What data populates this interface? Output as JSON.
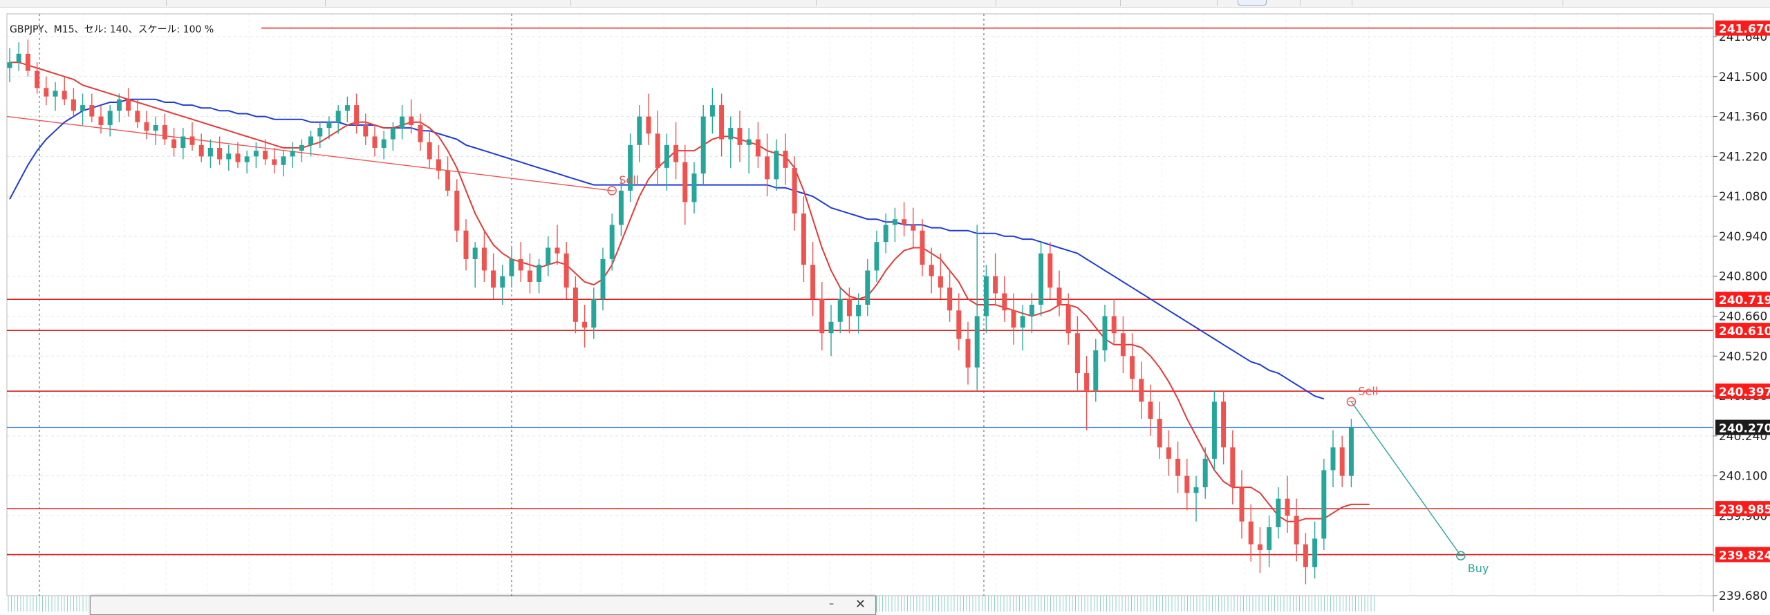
{
  "chart_info": "GBPJPY、M15、セル: 140、スケール: 100 %",
  "chart_data": {
    "type": "candlestick",
    "symbol": "GBPJPY",
    "timeframe": "M15",
    "ylim": [
      239.68,
      241.72
    ],
    "y_ticks": [
      "241.640",
      "241.500",
      "241.360",
      "241.220",
      "241.080",
      "240.940",
      "240.800",
      "240.660",
      "240.520",
      "240.380",
      "240.240",
      "240.100",
      "239.960",
      "239.820",
      "239.680"
    ],
    "current_price": "240.270",
    "horizontal_levels": [
      "241.670",
      "240.719",
      "240.610",
      "240.397",
      "239.985",
      "239.824"
    ],
    "trade_markers": [
      {
        "label": "Sell",
        "x": 66,
        "price": 241.1
      },
      {
        "label": "Sell",
        "x": 147,
        "price": 240.36
      },
      {
        "label": "Buy",
        "x": 159,
        "price": 239.82
      }
    ],
    "ohlc": [
      [
        241.53,
        241.6,
        241.48,
        241.55
      ],
      [
        241.55,
        241.62,
        241.52,
        241.58
      ],
      [
        241.58,
        241.63,
        241.5,
        241.52
      ],
      [
        241.52,
        241.55,
        241.44,
        241.46
      ],
      [
        241.46,
        241.5,
        241.4,
        241.43
      ],
      [
        241.43,
        241.48,
        241.38,
        241.45
      ],
      [
        241.45,
        241.5,
        241.4,
        241.42
      ],
      [
        241.42,
        241.46,
        241.36,
        241.38
      ],
      [
        241.38,
        241.44,
        241.33,
        241.4
      ],
      [
        241.4,
        241.44,
        241.34,
        241.36
      ],
      [
        241.36,
        241.4,
        241.3,
        241.33
      ],
      [
        241.33,
        241.4,
        241.29,
        241.38
      ],
      [
        241.38,
        241.44,
        241.34,
        241.42
      ],
      [
        241.42,
        241.46,
        241.36,
        241.38
      ],
      [
        241.38,
        241.42,
        241.32,
        241.34
      ],
      [
        241.34,
        241.38,
        241.28,
        241.31
      ],
      [
        241.31,
        241.36,
        241.26,
        241.33
      ],
      [
        241.33,
        241.37,
        241.26,
        241.28
      ],
      [
        241.28,
        241.32,
        241.22,
        241.25
      ],
      [
        241.25,
        241.32,
        241.21,
        241.29
      ],
      [
        241.29,
        241.34,
        241.24,
        241.26
      ],
      [
        241.26,
        241.3,
        241.2,
        241.22
      ],
      [
        241.22,
        241.28,
        241.18,
        241.25
      ],
      [
        241.25,
        241.29,
        241.19,
        241.21
      ],
      [
        241.21,
        241.26,
        241.17,
        241.23
      ],
      [
        241.23,
        241.27,
        241.18,
        241.2
      ],
      [
        241.2,
        241.24,
        241.16,
        241.22
      ],
      [
        241.22,
        241.27,
        241.18,
        241.24
      ],
      [
        241.24,
        241.28,
        241.19,
        241.21
      ],
      [
        241.21,
        241.25,
        241.16,
        241.19
      ],
      [
        241.19,
        241.24,
        241.15,
        241.22
      ],
      [
        241.22,
        241.27,
        241.18,
        241.24
      ],
      [
        241.24,
        241.28,
        241.2,
        241.26
      ],
      [
        241.26,
        241.31,
        241.22,
        241.29
      ],
      [
        241.29,
        241.34,
        241.25,
        241.32
      ],
      [
        241.32,
        241.36,
        241.28,
        241.34
      ],
      [
        241.34,
        241.4,
        241.3,
        241.38
      ],
      [
        241.38,
        241.43,
        241.34,
        241.4
      ],
      [
        241.4,
        241.44,
        241.3,
        241.33
      ],
      [
        241.33,
        241.37,
        241.26,
        241.29
      ],
      [
        241.29,
        241.33,
        241.22,
        241.25
      ],
      [
        241.25,
        241.31,
        241.21,
        241.28
      ],
      [
        241.28,
        241.34,
        241.24,
        241.32
      ],
      [
        241.32,
        241.4,
        241.28,
        241.36
      ],
      [
        241.36,
        241.42,
        241.3,
        241.33
      ],
      [
        241.33,
        241.37,
        241.24,
        241.27
      ],
      [
        241.27,
        241.31,
        241.18,
        241.21
      ],
      [
        241.21,
        241.26,
        241.14,
        241.17
      ],
      [
        241.17,
        241.22,
        241.08,
        241.1
      ],
      [
        241.1,
        241.14,
        240.92,
        240.96
      ],
      [
        240.96,
        241.0,
        240.82,
        240.86
      ],
      [
        240.86,
        240.92,
        240.76,
        240.9
      ],
      [
        240.9,
        240.96,
        240.78,
        240.82
      ],
      [
        240.82,
        240.88,
        240.72,
        240.76
      ],
      [
        240.76,
        240.84,
        240.7,
        240.8
      ],
      [
        240.8,
        240.9,
        240.76,
        240.86
      ],
      [
        240.86,
        240.92,
        240.78,
        240.82
      ],
      [
        240.82,
        240.88,
        240.74,
        240.78
      ],
      [
        240.78,
        240.86,
        240.74,
        240.84
      ],
      [
        240.84,
        240.94,
        240.8,
        240.9
      ],
      [
        240.9,
        240.98,
        240.84,
        240.88
      ],
      [
        240.88,
        240.92,
        240.72,
        240.76
      ],
      [
        240.76,
        240.8,
        240.6,
        240.64
      ],
      [
        240.64,
        240.7,
        240.55,
        240.62
      ],
      [
        240.62,
        240.76,
        240.58,
        240.72
      ],
      [
        240.72,
        240.9,
        240.68,
        240.86
      ],
      [
        240.86,
        241.02,
        240.82,
        240.98
      ],
      [
        240.98,
        241.14,
        240.94,
        241.1
      ],
      [
        241.1,
        241.3,
        241.06,
        241.26
      ],
      [
        241.26,
        241.4,
        241.2,
        241.36
      ],
      [
        241.36,
        241.44,
        241.26,
        241.3
      ],
      [
        241.3,
        241.38,
        241.12,
        241.18
      ],
      [
        241.18,
        241.3,
        241.1,
        241.26
      ],
      [
        241.26,
        241.34,
        241.14,
        241.2
      ],
      [
        241.2,
        241.26,
        240.98,
        241.06
      ],
      [
        241.06,
        241.2,
        241.02,
        241.16
      ],
      [
        241.16,
        241.4,
        241.12,
        241.36
      ],
      [
        241.36,
        241.46,
        241.3,
        241.4
      ],
      [
        241.4,
        241.44,
        241.22,
        241.28
      ],
      [
        241.28,
        241.36,
        241.18,
        241.32
      ],
      [
        241.32,
        241.38,
        241.2,
        241.26
      ],
      [
        241.26,
        241.32,
        241.16,
        241.28
      ],
      [
        241.28,
        241.34,
        241.18,
        241.22
      ],
      [
        241.22,
        241.3,
        241.08,
        241.14
      ],
      [
        241.14,
        241.28,
        241.1,
        241.24
      ],
      [
        241.24,
        241.3,
        241.12,
        241.18
      ],
      [
        241.18,
        241.22,
        240.96,
        241.02
      ],
      [
        241.02,
        241.08,
        240.78,
        240.84
      ],
      [
        240.84,
        240.92,
        240.66,
        240.72
      ],
      [
        240.72,
        240.78,
        240.54,
        240.6
      ],
      [
        240.6,
        240.7,
        240.52,
        240.64
      ],
      [
        240.64,
        240.76,
        240.6,
        240.72
      ],
      [
        240.72,
        240.76,
        240.6,
        240.66
      ],
      [
        240.66,
        240.74,
        240.6,
        240.7
      ],
      [
        240.7,
        240.86,
        240.66,
        240.82
      ],
      [
        240.82,
        240.96,
        240.78,
        240.92
      ],
      [
        240.92,
        241.02,
        240.88,
        240.98
      ],
      [
        240.98,
        241.04,
        240.92,
        241.0
      ],
      [
        241.0,
        241.06,
        240.94,
        240.98
      ],
      [
        240.98,
        241.04,
        240.9,
        240.96
      ],
      [
        240.96,
        241.0,
        240.8,
        240.84
      ],
      [
        240.84,
        240.9,
        240.74,
        240.8
      ],
      [
        240.8,
        240.88,
        240.72,
        240.76
      ],
      [
        240.76,
        240.82,
        240.64,
        240.68
      ],
      [
        240.68,
        240.74,
        240.54,
        240.58
      ],
      [
        240.58,
        240.64,
        240.42,
        240.48
      ],
      [
        240.48,
        240.98,
        240.4,
        240.66
      ],
      [
        240.66,
        240.84,
        240.6,
        240.8
      ],
      [
        240.8,
        240.88,
        240.7,
        240.74
      ],
      [
        240.74,
        240.8,
        240.64,
        240.68
      ],
      [
        240.68,
        240.74,
        240.56,
        240.62
      ],
      [
        240.62,
        240.7,
        240.54,
        240.66
      ],
      [
        240.66,
        240.74,
        240.6,
        240.7
      ],
      [
        240.7,
        240.92,
        240.66,
        240.88
      ],
      [
        240.88,
        240.92,
        240.72,
        240.76
      ],
      [
        240.76,
        240.82,
        240.66,
        240.7
      ],
      [
        240.7,
        240.74,
        240.56,
        240.6
      ],
      [
        240.6,
        240.66,
        240.4,
        240.46
      ],
      [
        240.46,
        240.52,
        240.26,
        240.4
      ],
      [
        240.4,
        240.58,
        240.36,
        240.54
      ],
      [
        240.54,
        240.7,
        240.5,
        240.66
      ],
      [
        240.66,
        240.72,
        240.56,
        240.6
      ],
      [
        240.6,
        240.66,
        240.46,
        240.52
      ],
      [
        240.52,
        240.6,
        240.4,
        240.44
      ],
      [
        240.44,
        240.5,
        240.3,
        240.36
      ],
      [
        240.36,
        240.42,
        240.24,
        240.3
      ],
      [
        240.3,
        240.36,
        240.16,
        240.2
      ],
      [
        240.2,
        240.26,
        240.1,
        240.16
      ],
      [
        240.16,
        240.22,
        240.04,
        240.1
      ],
      [
        240.1,
        240.16,
        239.98,
        240.04
      ],
      [
        240.04,
        240.1,
        239.94,
        240.06
      ],
      [
        240.06,
        240.2,
        240.02,
        240.16
      ],
      [
        240.16,
        240.4,
        240.12,
        240.36
      ],
      [
        240.36,
        240.4,
        240.14,
        240.2
      ],
      [
        240.2,
        240.26,
        240.0,
        240.06
      ],
      [
        240.06,
        240.12,
        239.88,
        239.94
      ],
      [
        239.94,
        240.0,
        239.8,
        239.86
      ],
      [
        239.86,
        239.92,
        239.76,
        239.84
      ],
      [
        239.84,
        239.96,
        239.78,
        239.92
      ],
      [
        239.92,
        240.06,
        239.88,
        240.02
      ],
      [
        240.02,
        240.1,
        239.9,
        239.96
      ],
      [
        239.96,
        240.02,
        239.8,
        239.86
      ],
      [
        239.86,
        239.9,
        239.72,
        239.78
      ],
      [
        239.78,
        239.94,
        239.74,
        239.88
      ],
      [
        239.88,
        240.16,
        239.84,
        240.12
      ],
      [
        240.12,
        240.26,
        240.06,
        240.2
      ],
      [
        240.2,
        240.24,
        240.06,
        240.1
      ],
      [
        240.1,
        240.3,
        240.06,
        240.27
      ]
    ],
    "ma_fast": [
      241.55,
      241.55,
      241.54,
      241.53,
      241.52,
      241.51,
      241.5,
      241.49,
      241.47,
      241.46,
      241.45,
      241.44,
      241.43,
      241.42,
      241.41,
      241.4,
      241.39,
      241.38,
      241.37,
      241.36,
      241.35,
      241.34,
      241.33,
      241.32,
      241.31,
      241.3,
      241.29,
      241.28,
      241.27,
      241.26,
      241.25,
      241.25,
      241.25,
      241.26,
      241.27,
      241.29,
      241.31,
      241.33,
      241.34,
      241.34,
      241.33,
      241.32,
      241.32,
      241.33,
      241.34,
      241.34,
      241.32,
      241.29,
      241.24,
      241.18,
      241.1,
      241.02,
      240.96,
      240.91,
      240.88,
      240.86,
      240.85,
      240.84,
      240.83,
      240.84,
      240.85,
      240.84,
      240.81,
      240.78,
      240.77,
      240.79,
      240.84,
      240.92,
      241.0,
      241.08,
      241.14,
      241.18,
      241.21,
      241.24,
      241.24,
      241.24,
      241.26,
      241.28,
      241.29,
      241.29,
      241.28,
      241.27,
      241.26,
      241.24,
      241.23,
      241.22,
      241.18,
      241.1,
      241.0,
      240.9,
      240.82,
      240.76,
      240.73,
      240.72,
      240.73,
      240.77,
      240.82,
      240.86,
      240.89,
      240.9,
      240.9,
      240.88,
      240.86,
      240.82,
      240.78,
      240.72,
      240.7,
      240.7,
      240.7,
      240.69,
      240.68,
      240.67,
      240.66,
      240.67,
      240.68,
      240.7,
      240.7,
      240.69,
      240.66,
      240.62,
      240.58,
      240.56,
      240.56,
      240.56,
      240.55,
      240.52,
      240.48,
      240.43,
      240.37,
      240.3,
      240.24,
      240.18,
      240.12,
      240.08,
      240.06,
      240.06,
      240.06,
      240.04,
      240.0,
      239.96,
      239.94,
      239.94,
      239.95,
      239.95,
      239.95,
      239.97,
      239.99,
      240.0,
      240.0,
      240.0
    ],
    "ma_slow": [
      241.07,
      241.13,
      241.19,
      241.24,
      241.28,
      241.31,
      241.34,
      241.36,
      241.38,
      241.39,
      241.4,
      241.41,
      241.41,
      241.42,
      241.42,
      241.42,
      241.42,
      241.41,
      241.41,
      241.4,
      241.4,
      241.39,
      241.39,
      241.38,
      241.38,
      241.37,
      241.37,
      241.36,
      241.36,
      241.35,
      241.35,
      241.35,
      241.35,
      241.34,
      241.34,
      241.34,
      241.34,
      241.33,
      241.33,
      241.33,
      241.33,
      241.32,
      241.32,
      241.32,
      241.32,
      241.31,
      241.31,
      241.3,
      241.29,
      241.28,
      241.26,
      241.25,
      241.24,
      241.23,
      241.22,
      241.21,
      241.2,
      241.19,
      241.18,
      241.17,
      241.16,
      241.15,
      241.14,
      241.13,
      241.12,
      241.12,
      241.12,
      241.12,
      241.12,
      241.12,
      241.12,
      241.12,
      241.12,
      241.12,
      241.12,
      241.12,
      241.12,
      241.12,
      241.12,
      241.12,
      241.12,
      241.12,
      241.12,
      241.12,
      241.11,
      241.11,
      241.1,
      241.09,
      241.08,
      241.06,
      241.04,
      241.03,
      241.02,
      241.01,
      241.0,
      241.0,
      240.99,
      240.99,
      240.98,
      240.98,
      240.98,
      240.97,
      240.97,
      240.96,
      240.96,
      240.96,
      240.95,
      240.95,
      240.95,
      240.94,
      240.94,
      240.93,
      240.93,
      240.92,
      240.91,
      240.9,
      240.89,
      240.88,
      240.86,
      240.84,
      240.82,
      240.8,
      240.78,
      240.76,
      240.74,
      240.72,
      240.7,
      240.68,
      240.66,
      240.64,
      240.62,
      240.6,
      240.58,
      240.56,
      240.54,
      240.52,
      240.5,
      240.49,
      240.47,
      240.46,
      240.44,
      240.42,
      240.4,
      240.38,
      240.37
    ],
    "sell_trendline": {
      "from_x": 0,
      "from_price": 241.36,
      "to_x": 66,
      "to_price": 241.1
    },
    "buy_trendline": {
      "from_x": 147,
      "from_price": 240.36,
      "to_x": 159,
      "to_price": 239.82
    },
    "colors": {
      "bull": "#26a69a",
      "bear": "#ef5350",
      "ma_fast": "#e53935",
      "ma_slow": "#1e3cd6",
      "level": "#e11d1d",
      "bid": "#3f7fe0",
      "grid": "#dfe3e8"
    }
  }
}
